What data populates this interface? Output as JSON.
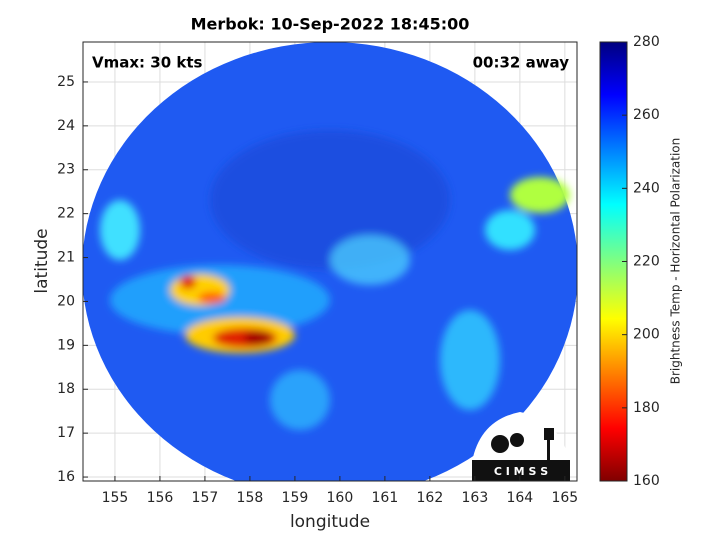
{
  "chart_data": {
    "type": "heatmap",
    "title": "Merbok: 10-Sep-2022 18:45:00",
    "annotations": [
      "Vmax: 30 kts",
      "00:32 away"
    ],
    "x_label": "longitude",
    "y_label": "latitude",
    "xlim": [
      154.29,
      165.27
    ],
    "ylim": [
      15.91,
      25.91
    ],
    "xticks": [
      155,
      156,
      157,
      158,
      159,
      160,
      161,
      162,
      163,
      164,
      165
    ],
    "yticks": [
      16,
      17,
      18,
      19,
      20,
      21,
      22,
      23,
      24,
      25
    ],
    "grid": true,
    "colorbar": {
      "label": "Brightness Temp - Horizontal Polarization",
      "lim": [
        160,
        280
      ],
      "ticks": [
        160,
        180,
        200,
        220,
        240,
        260,
        280
      ]
    },
    "logo_text": "C I M S S"
  }
}
